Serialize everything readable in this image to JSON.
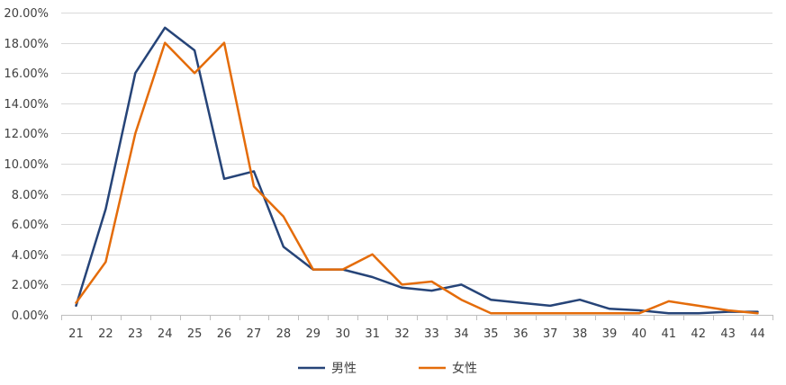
{
  "chart_data": {
    "type": "line",
    "title": "",
    "xlabel": "",
    "ylabel": "",
    "x": [
      "21",
      "22",
      "23",
      "24",
      "25",
      "26",
      "27",
      "28",
      "29",
      "30",
      "31",
      "32",
      "33",
      "34",
      "35",
      "36",
      "37",
      "38",
      "39",
      "40",
      "41",
      "42",
      "43",
      "44"
    ],
    "ylim": [
      0,
      0.2
    ],
    "yticks": [
      "0.00%",
      "2.00%",
      "4.00%",
      "6.00%",
      "8.00%",
      "10.00%",
      "12.00%",
      "14.00%",
      "16.00%",
      "18.00%",
      "20.00%"
    ],
    "grid": "horizontal",
    "legend_position": "bottom",
    "series": [
      {
        "name": "男性",
        "color": "#264478",
        "values": [
          0.006,
          0.07,
          0.16,
          0.19,
          0.175,
          0.09,
          0.095,
          0.045,
          0.03,
          0.03,
          0.025,
          0.018,
          0.016,
          0.02,
          0.01,
          0.008,
          0.006,
          0.01,
          0.004,
          0.003,
          0.001,
          0.001,
          0.002,
          0.002
        ]
      },
      {
        "name": "女性",
        "color": "#E46C0A",
        "values": [
          0.008,
          0.035,
          0.12,
          0.18,
          0.16,
          0.18,
          0.085,
          0.065,
          0.03,
          0.03,
          0.04,
          0.02,
          0.022,
          0.01,
          0.001,
          0.001,
          0.001,
          0.001,
          0.001,
          0.001,
          0.009,
          0.006,
          0.003,
          0.001
        ]
      }
    ]
  }
}
